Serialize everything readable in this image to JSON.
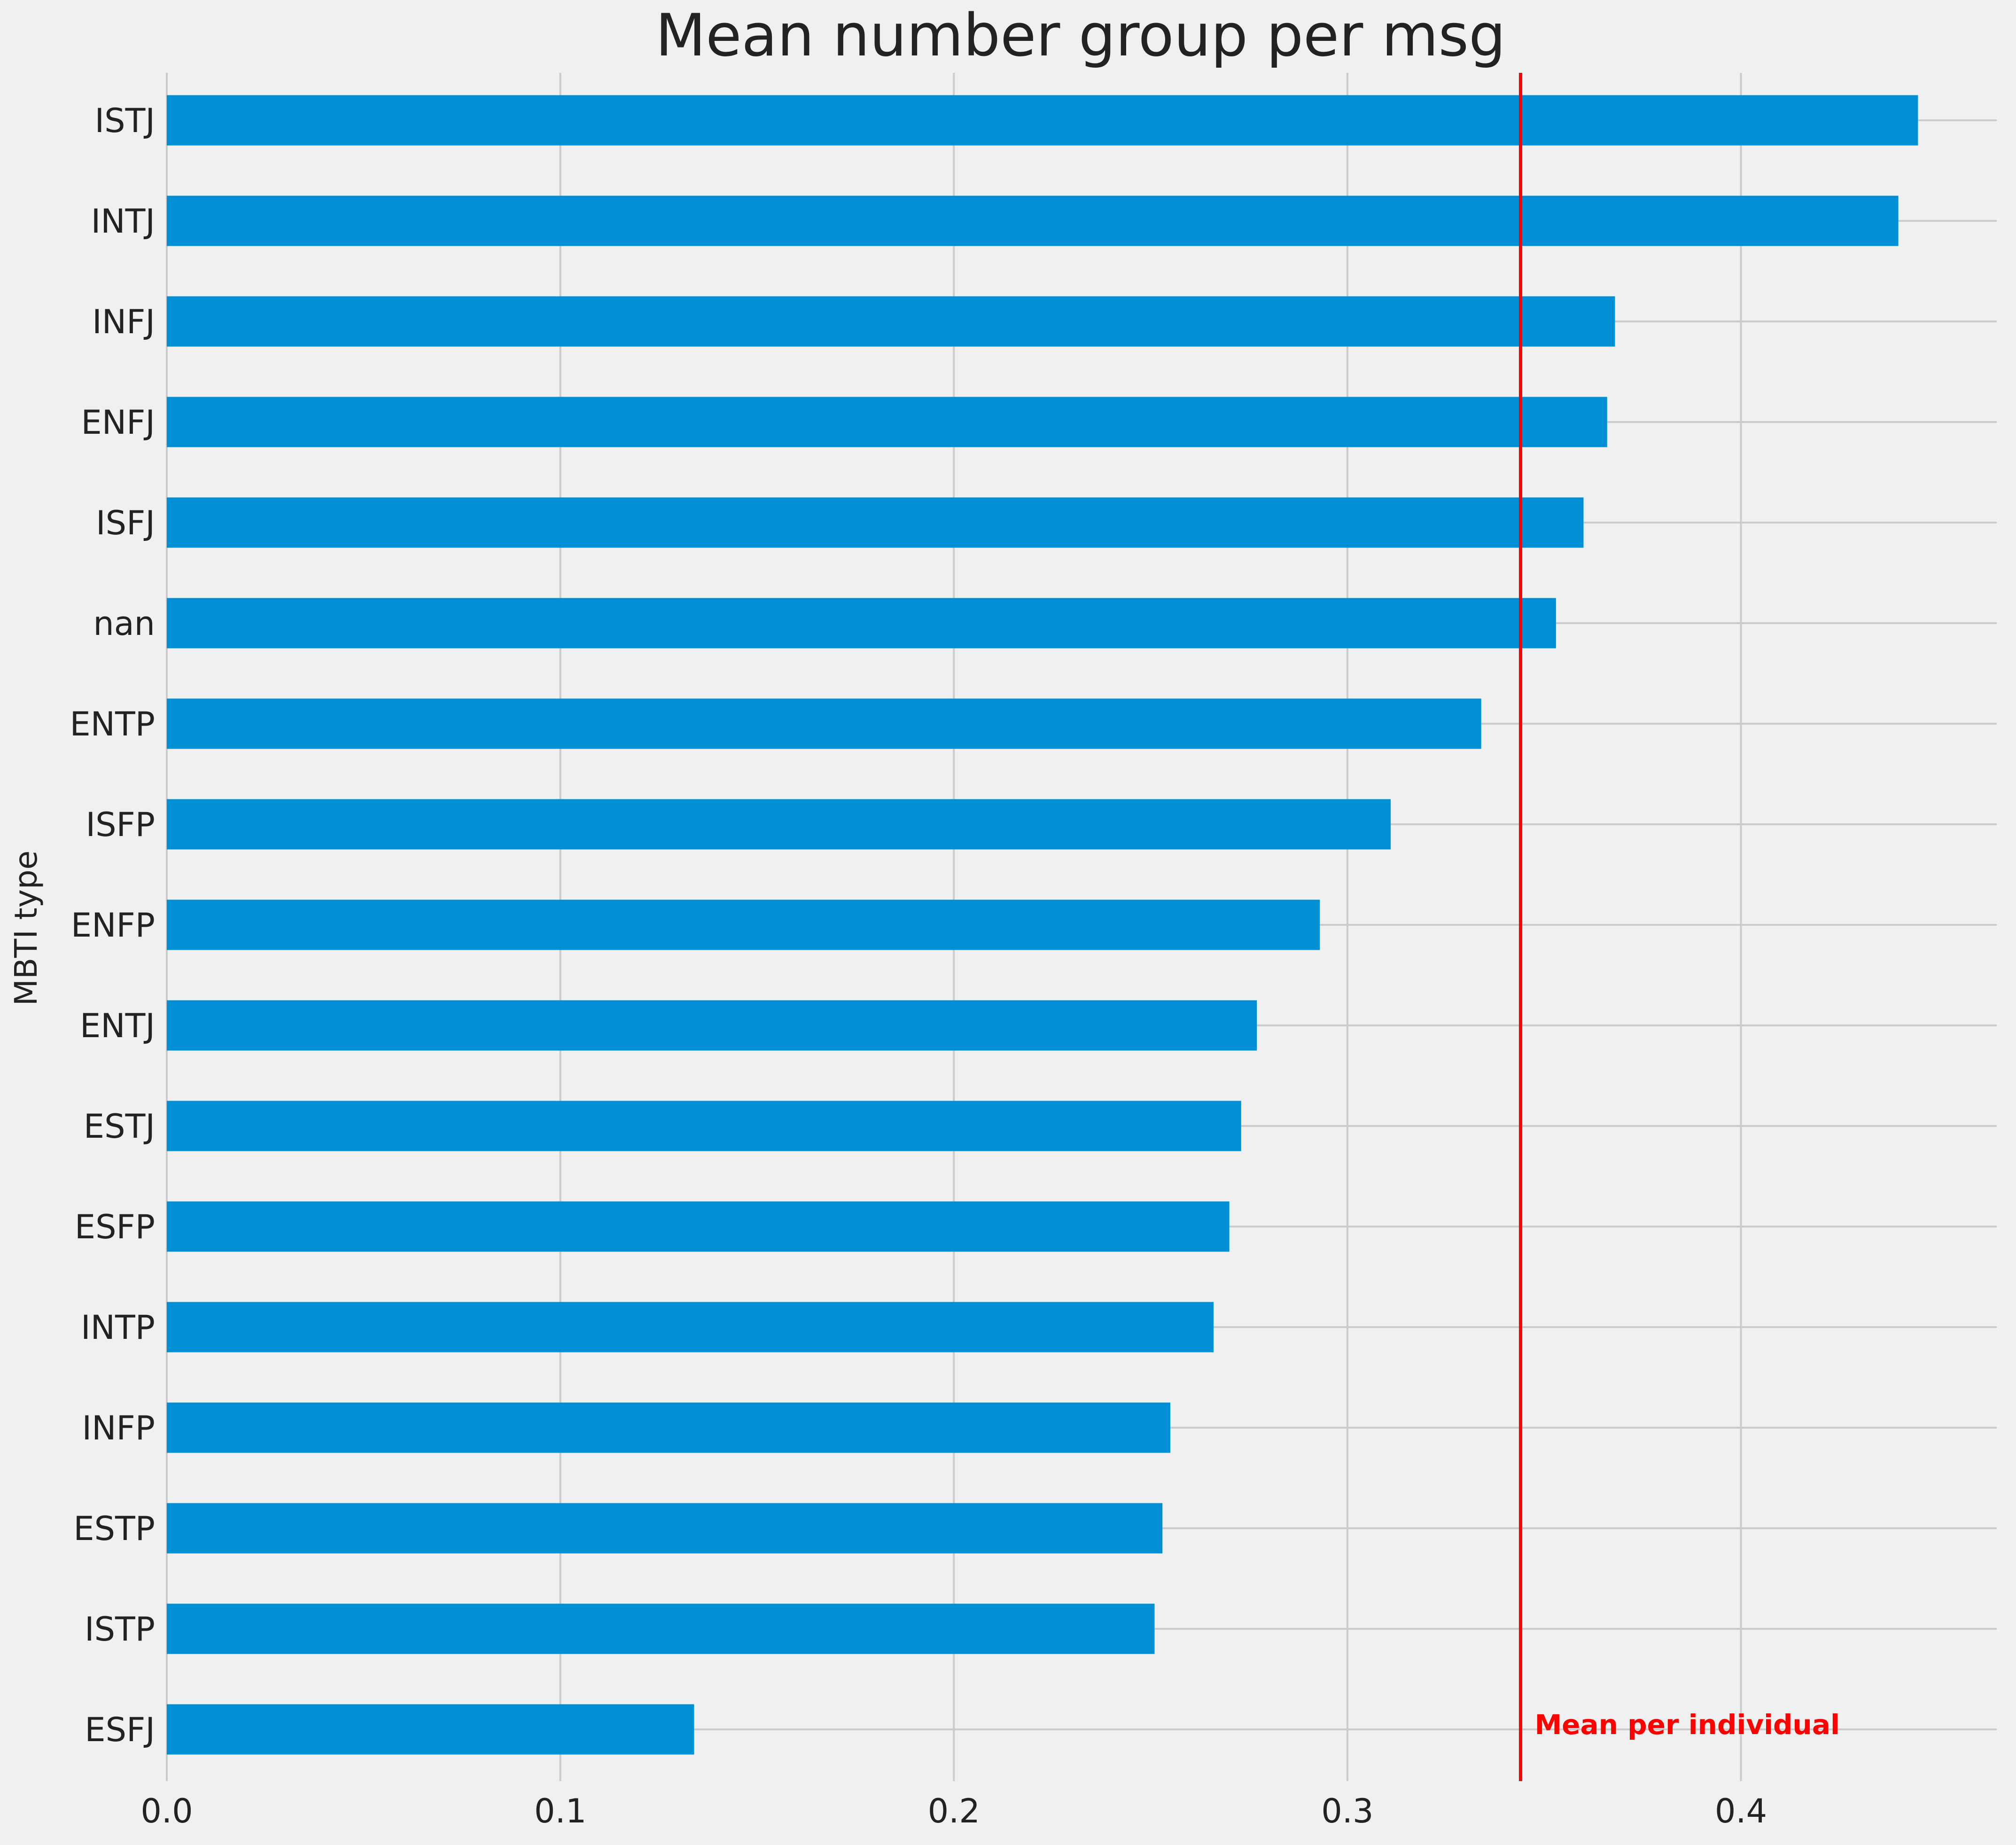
{
  "chart_data": {
    "type": "bar",
    "orientation": "horizontal",
    "title": "Mean number group per msg",
    "xlabel": "",
    "ylabel": "MBTI type",
    "xlim": [
      0.0,
      0.465
    ],
    "xticks": [
      0.0,
      0.1,
      0.2,
      0.3,
      0.4
    ],
    "xtick_labels": [
      "0.0",
      "0.1",
      "0.2",
      "0.3",
      "0.4"
    ],
    "grid": true,
    "bar_color": "#008fd5",
    "background_color": "#f0f0f0",
    "grid_color": "#cbcbcb",
    "categories": [
      "ISTJ",
      "INTJ",
      "INFJ",
      "ENFJ",
      "ISFJ",
      "nan",
      "ENTP",
      "ISFP",
      "ENFP",
      "ENTJ",
      "ESTJ",
      "ESFP",
      "INTP",
      "INFP",
      "ESTP",
      "ISTP",
      "ESFJ"
    ],
    "values": [
      0.445,
      0.44,
      0.368,
      0.366,
      0.36,
      0.353,
      0.334,
      0.311,
      0.293,
      0.277,
      0.273,
      0.27,
      0.266,
      0.255,
      0.253,
      0.251,
      0.134
    ],
    "reference_line": {
      "value": 0.344,
      "label": "Mean per individual",
      "color": "#ff0000"
    }
  }
}
